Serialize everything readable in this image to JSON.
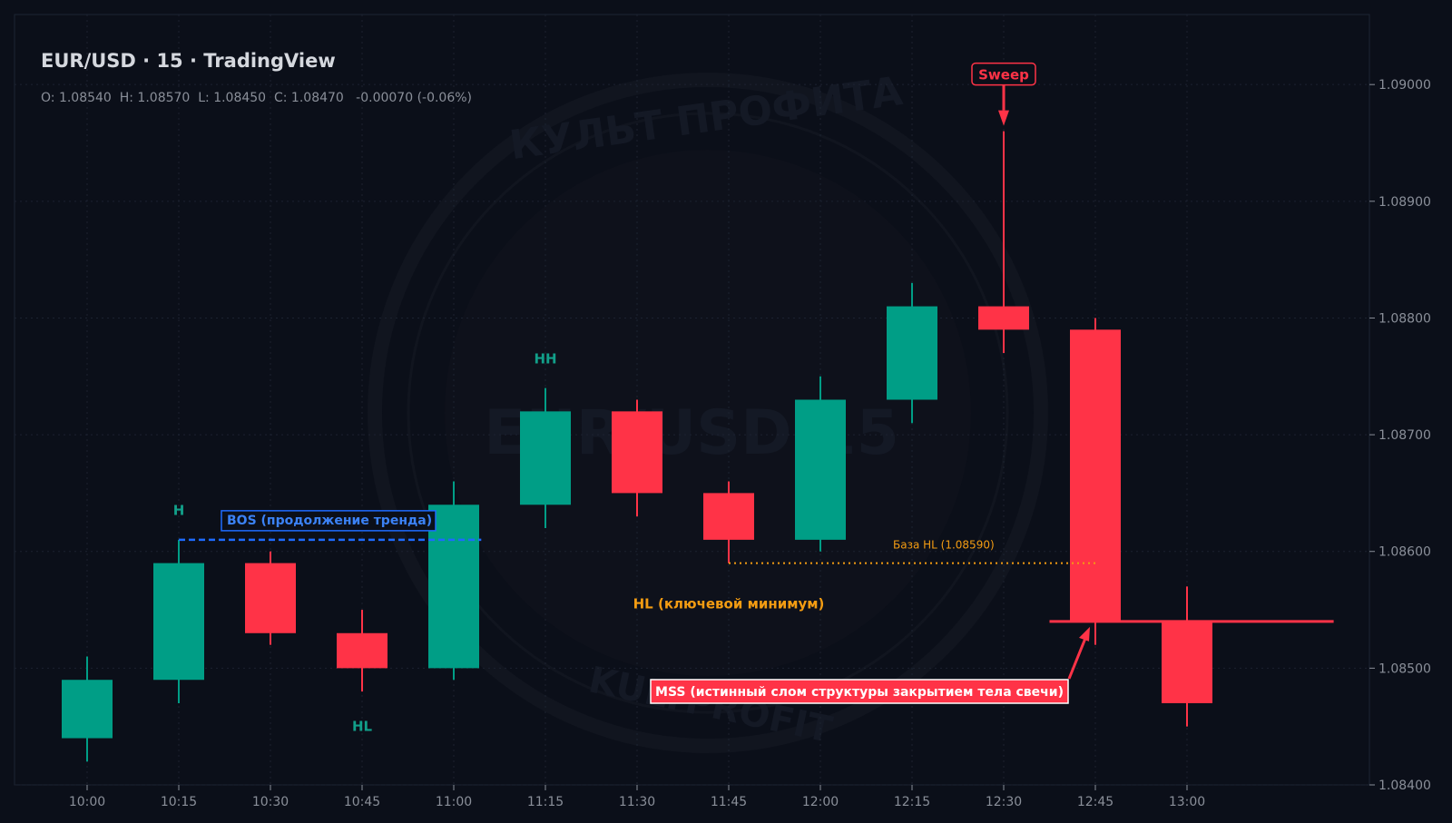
{
  "header": {
    "title": "EUR/USD · 15 · TradingView",
    "ohlc": "O: 1.08540  H: 1.08570  L: 1.08450  C: 1.08470   -0.00070 (-0.06%)"
  },
  "watermark": {
    "center_text": "EUR/USD 15",
    "arc_top": "КУЛЬТ ПРОФИТА",
    "arc_bottom": "KULTPROFIT"
  },
  "colors": {
    "background": "#0b0f19",
    "bull": "#009e86",
    "bear": "#ff3347",
    "grid": "#1c2230",
    "axis_text": "#8a8f99",
    "bos": "#1e6bff",
    "hl_base": "#f39c12"
  },
  "chart_data": {
    "type": "candlestick",
    "categories": [
      "10:00",
      "10:15",
      "10:30",
      "10:45",
      "11:00",
      "11:15",
      "11:30",
      "11:45",
      "12:00",
      "12:15",
      "12:30",
      "12:45",
      "13:00"
    ],
    "candles": [
      {
        "o": 1.0844,
        "h": 1.0851,
        "l": 1.0842,
        "c": 1.0849
      },
      {
        "o": 1.0849,
        "h": 1.0861,
        "l": 1.0847,
        "c": 1.0859
      },
      {
        "o": 1.0859,
        "h": 1.086,
        "l": 1.0852,
        "c": 1.0853
      },
      {
        "o": 1.0853,
        "h": 1.0855,
        "l": 1.0848,
        "c": 1.085
      },
      {
        "o": 1.085,
        "h": 1.0866,
        "l": 1.0849,
        "c": 1.0864
      },
      {
        "o": 1.0864,
        "h": 1.0874,
        "l": 1.0862,
        "c": 1.0872
      },
      {
        "o": 1.0872,
        "h": 1.0873,
        "l": 1.0863,
        "c": 1.0865
      },
      {
        "o": 1.0865,
        "h": 1.0866,
        "l": 1.0859,
        "c": 1.0861
      },
      {
        "o": 1.0861,
        "h": 1.0875,
        "l": 1.086,
        "c": 1.0873
      },
      {
        "o": 1.0873,
        "h": 1.0883,
        "l": 1.0871,
        "c": 1.0881
      },
      {
        "o": 1.0881,
        "h": 1.0896,
        "l": 1.0877,
        "c": 1.0879
      },
      {
        "o": 1.0879,
        "h": 1.088,
        "l": 1.0852,
        "c": 1.0854
      },
      {
        "o": 1.0854,
        "h": 1.0857,
        "l": 1.0845,
        "c": 1.0847
      }
    ],
    "y_ticks": [
      "1.08400",
      "1.08500",
      "1.08600",
      "1.08700",
      "1.08800",
      "1.08900",
      "1.09000"
    ],
    "ylim": [
      1.084,
      1.0906
    ],
    "grid": true,
    "annotations": {
      "swing_labels": [
        {
          "text": "H",
          "index": 1,
          "price": 1.08635
        },
        {
          "text": "HL",
          "index": 3,
          "price": 1.0845
        },
        {
          "text": "HH",
          "index": 5,
          "price": 1.08765
        }
      ],
      "bos": {
        "text": "BOS (продолжение тренда)",
        "price": 1.0861,
        "from_index": 1,
        "to_index": 4.3
      },
      "hl_base": {
        "text": "База HL (1.08590)",
        "price": 1.0859,
        "from_index": 7,
        "to_index": 11
      },
      "hl_key": {
        "text": "HL (ключевой минимум)",
        "index": 7,
        "price": 1.08555
      },
      "sweep": {
        "text": "Sweep",
        "index": 10,
        "price": 1.09009
      },
      "mss": {
        "text": "MSS (истинный слом структуры закрытием тела свечи)",
        "price": 1.0854,
        "from_index": 10.5,
        "to_index": 13.6
      }
    }
  }
}
